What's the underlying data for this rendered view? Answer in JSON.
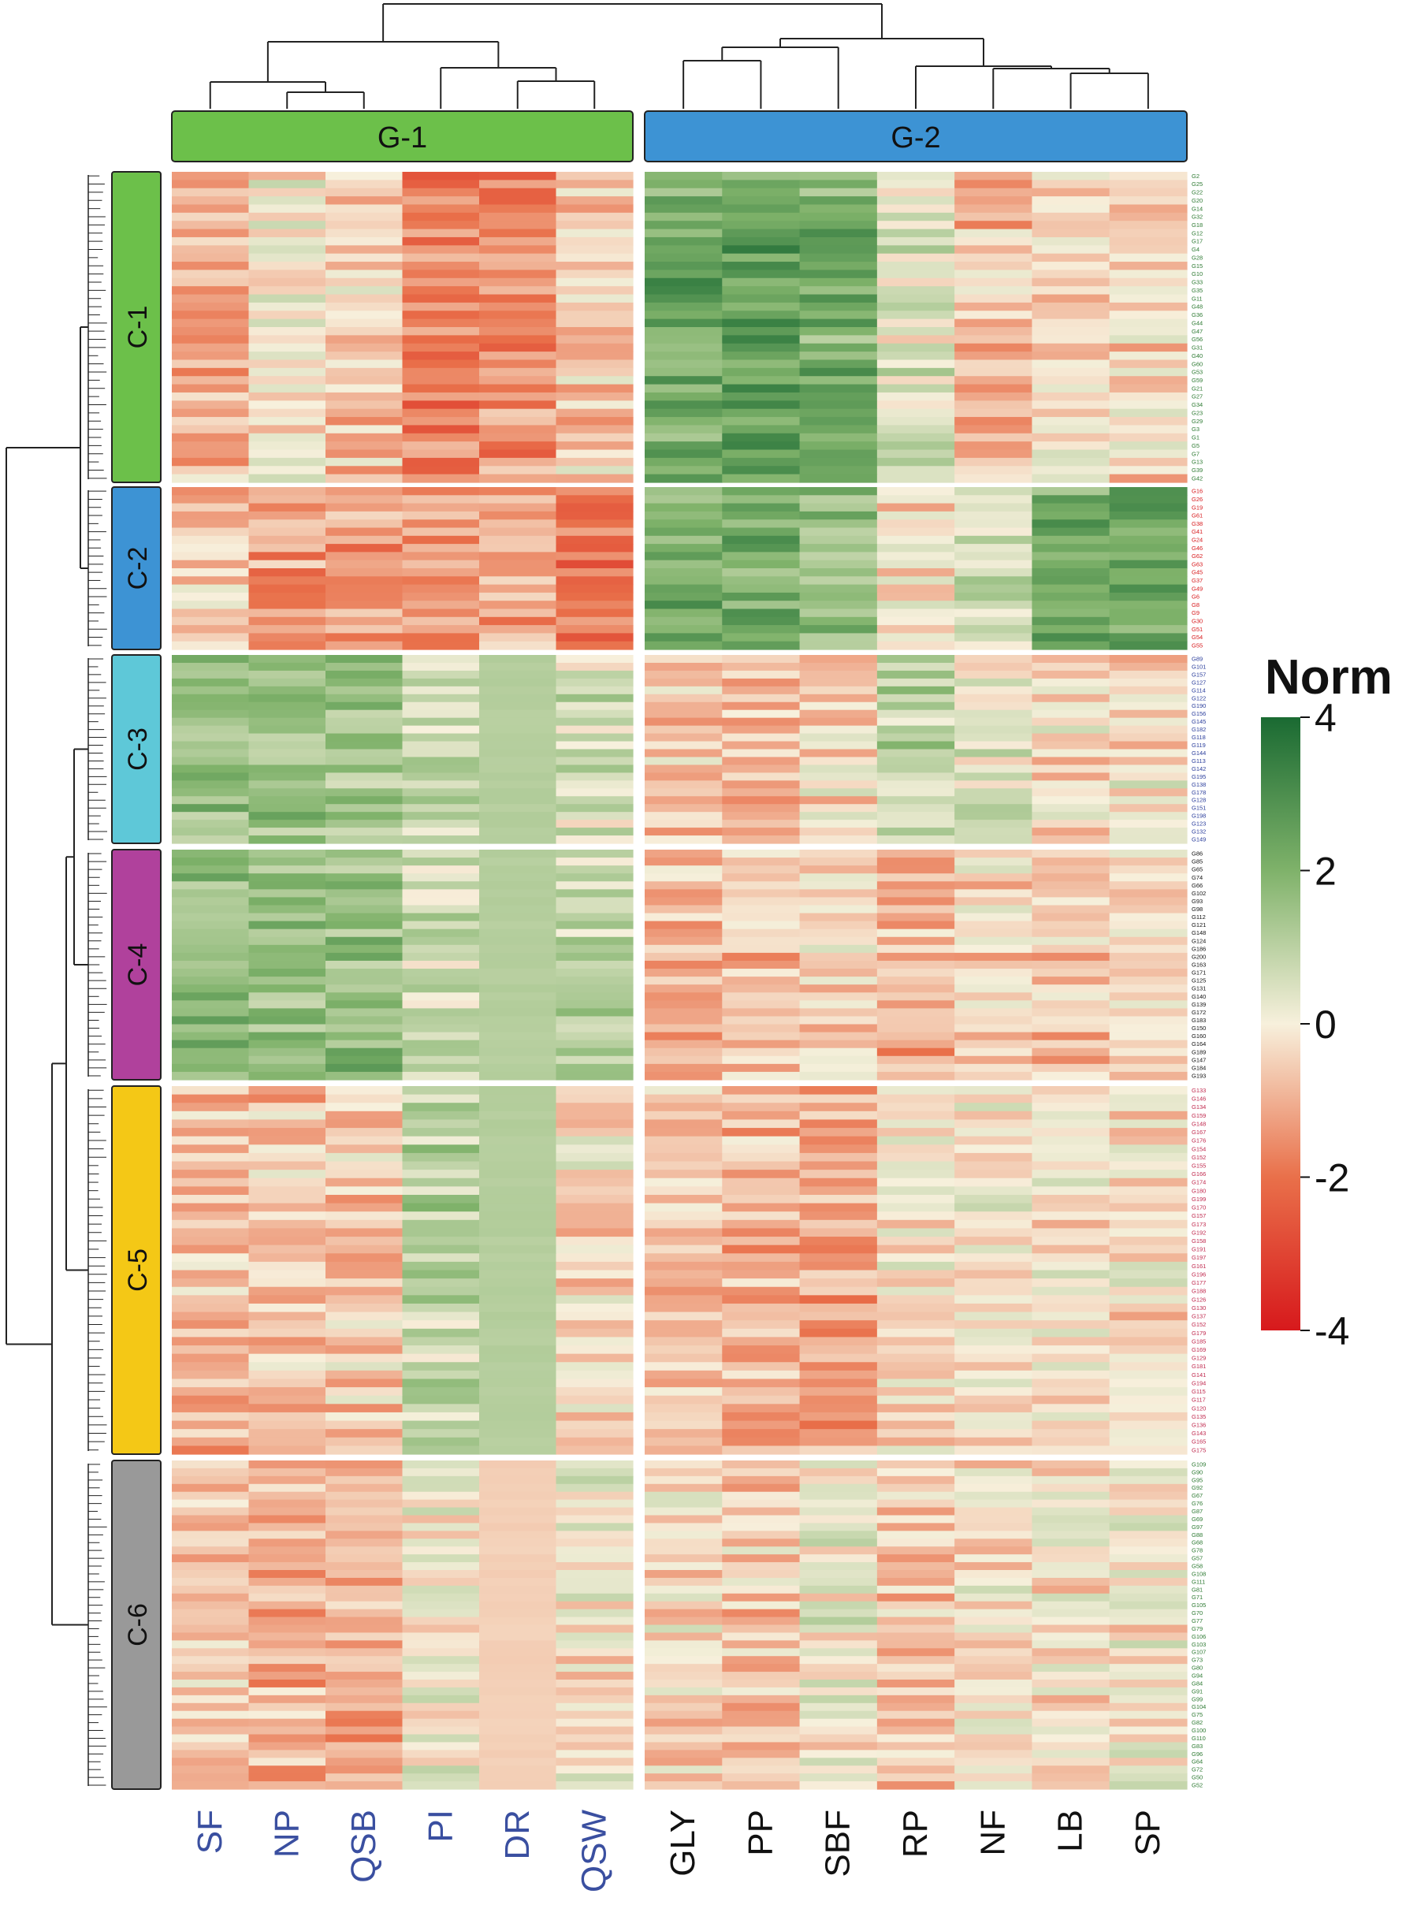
{
  "chart_data": {
    "type": "heatmap",
    "title": "",
    "legend": {
      "title": "Norm",
      "ticks": [
        4,
        2,
        0,
        -2,
        -4
      ],
      "range": [
        -4,
        4
      ],
      "colors": {
        "low": "#d7191c",
        "mid": "#f7f0dc",
        "high": "#1a6a32"
      }
    },
    "column_groups": [
      {
        "label": "G-1",
        "color": "#6cc04a",
        "columns": [
          "SF",
          "NP",
          "QSB",
          "PI",
          "DR",
          "QSW"
        ],
        "label_color": "#3a4fa0"
      },
      {
        "label": "G-2",
        "color": "#3d93d4",
        "columns": [
          "GLY",
          "PP",
          "SBF",
          "RP",
          "NF",
          "LB",
          "SP"
        ],
        "label_color": "#111111"
      }
    ],
    "row_clusters": [
      {
        "label": "C-1",
        "color": "#6cc04a",
        "text_color": "#2d7a32",
        "genes": [
          "G2",
          "G25",
          "G22",
          "G20",
          "G14",
          "G32",
          "G18",
          "G12",
          "G17",
          "G4",
          "G28",
          "G15",
          "G10",
          "G33",
          "G35",
          "G11",
          "G48",
          "G36",
          "G44",
          "G47",
          "G56",
          "G31",
          "G40",
          "G60",
          "G53",
          "G59",
          "G21",
          "G27",
          "G34",
          "G23",
          "G29",
          "G3",
          "G1",
          "G5",
          "G7",
          "G13",
          "G39",
          "G42"
        ],
        "profile": [
          -0.9,
          -0.1,
          -0.6,
          -1.7,
          -1.5,
          -0.6,
          2.3,
          2.5,
          2.1,
          0.4,
          -0.7,
          -0.3,
          -0.4
        ]
      },
      {
        "label": "C-2",
        "color": "#3d93d4",
        "text_color": "#d7191c",
        "genes": [
          "G16",
          "G26",
          "G19",
          "G61",
          "G38",
          "G41",
          "G24",
          "G46",
          "G62",
          "G63",
          "G45",
          "G37",
          "G49",
          "G6",
          "G8",
          "G9",
          "G30",
          "G51",
          "G54",
          "G55"
        ],
        "profile": [
          -0.6,
          -1.4,
          -1.3,
          -1.3,
          -1.2,
          -1.9,
          2.0,
          2.1,
          1.6,
          -0.3,
          0.6,
          2.2,
          2.4
        ]
      },
      {
        "label": "C-3",
        "color": "#5ec8d8",
        "text_color": "#2b3e9c",
        "genes": [
          "G89",
          "G101",
          "G157",
          "G127",
          "G114",
          "G122",
          "G190",
          "G156",
          "G145",
          "G182",
          "G118",
          "G119",
          "G144",
          "G113",
          "G142",
          "G195",
          "G138",
          "G178",
          "G128",
          "G151",
          "G198",
          "G123",
          "G132",
          "G149"
        ],
        "profile": [
          1.7,
          1.6,
          1.5,
          0.8,
          1.1,
          0.6,
          -0.7,
          -0.8,
          -0.4,
          0.9,
          0.2,
          -0.4,
          -0.3
        ]
      },
      {
        "label": "C-4",
        "color": "#b0419c",
        "text_color": "#111111",
        "genes": [
          "G86",
          "G85",
          "G65",
          "G74",
          "G66",
          "G102",
          "G93",
          "G98",
          "G112",
          "G121",
          "G148",
          "G124",
          "G186",
          "G200",
          "G163",
          "G171",
          "G125",
          "G131",
          "G140",
          "G139",
          "G172",
          "G183",
          "G150",
          "G160",
          "G164",
          "G189",
          "G147",
          "G184",
          "G193"
        ],
        "profile": [
          1.8,
          1.7,
          1.7,
          0.7,
          1.1,
          1.0,
          -0.8,
          -0.8,
          -0.3,
          -1.0,
          -0.4,
          -0.7,
          -0.3
        ]
      },
      {
        "label": "C-5",
        "color": "#f4c816",
        "text_color": "#c0294e",
        "genes": [
          "G133",
          "G146",
          "G134",
          "G159",
          "G148",
          "G167",
          "G176",
          "G154",
          "G152",
          "G155",
          "G166",
          "G174",
          "G180",
          "G199",
          "G170",
          "G157",
          "G173",
          "G192",
          "G158",
          "G191",
          "G197",
          "G161",
          "G196",
          "G177",
          "G188",
          "G126",
          "G130",
          "G137",
          "G152",
          "G179",
          "G185",
          "G169",
          "G129",
          "G181",
          "G141",
          "G194",
          "G115",
          "G117",
          "G120",
          "G135",
          "G136",
          "G143",
          "G165",
          "G175"
        ],
        "profile": [
          -0.8,
          -0.7,
          -0.6,
          1.0,
          1.1,
          -0.4,
          -0.7,
          -1.0,
          -1.2,
          -0.2,
          -0.1,
          -0.2,
          -0.3
        ]
      },
      {
        "label": "C-6",
        "color": "#999999",
        "text_color": "#2d7a32",
        "genes": [
          "G109",
          "G90",
          "G95",
          "G92",
          "G67",
          "G76",
          "G87",
          "G69",
          "G97",
          "G88",
          "G68",
          "G78",
          "G57",
          "G58",
          "G108",
          "G111",
          "G81",
          "G71",
          "G105",
          "G70",
          "G77",
          "G79",
          "G106",
          "G103",
          "G107",
          "G73",
          "G80",
          "G94",
          "G84",
          "G91",
          "G99",
          "G104",
          "G75",
          "G82",
          "G100",
          "G110",
          "G83",
          "G96",
          "G64",
          "G72",
          "G50",
          "G52"
        ],
        "profile": [
          -0.6,
          -0.9,
          -1.0,
          0.1,
          -0.5,
          0.0,
          -0.4,
          -0.6,
          0.1,
          -0.6,
          -0.3,
          -0.2,
          -0.1
        ]
      }
    ]
  }
}
